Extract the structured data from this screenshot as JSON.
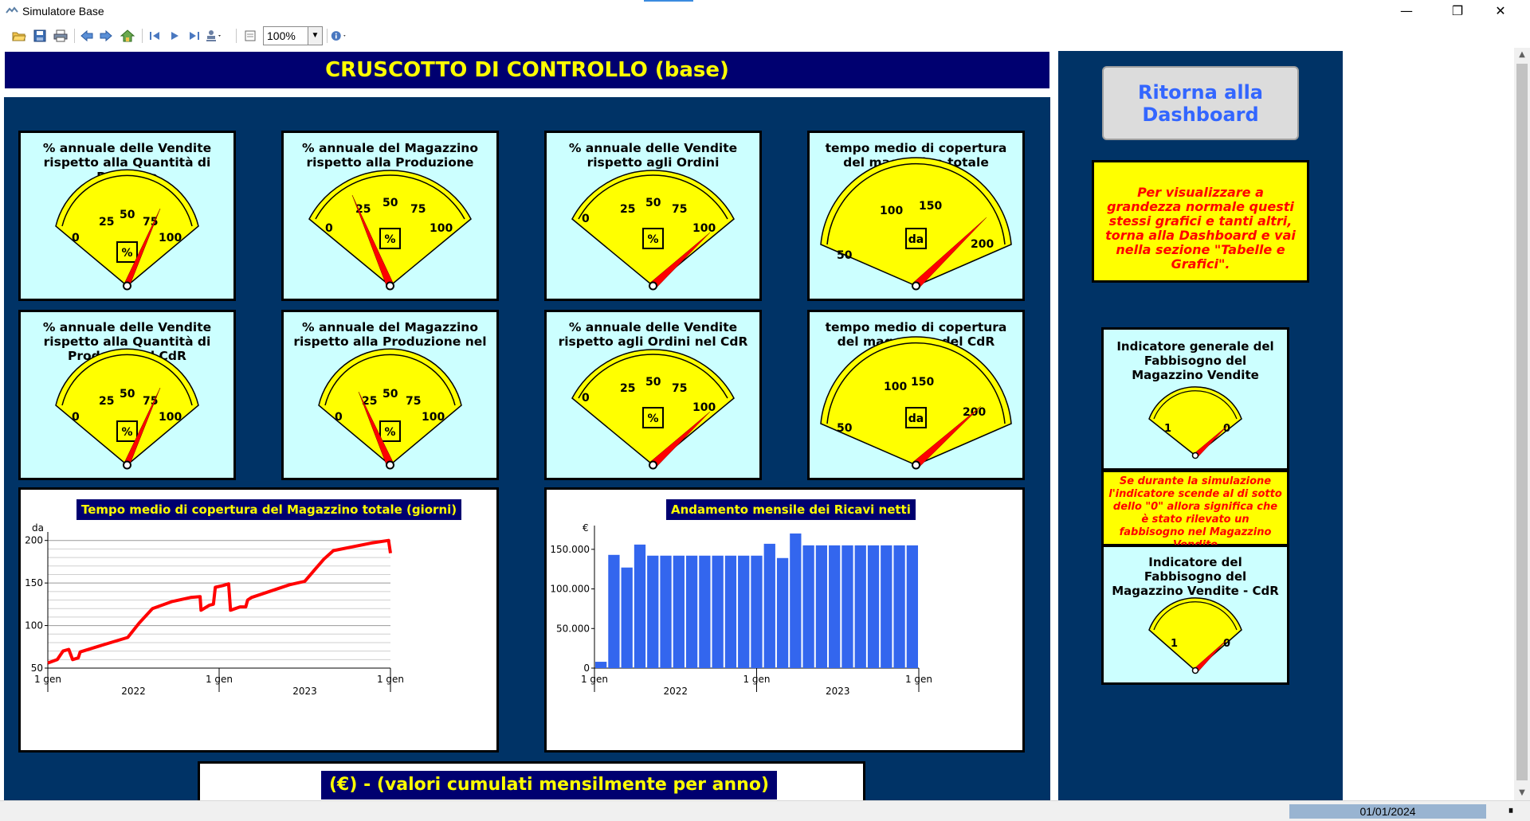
{
  "window": {
    "title": "Simulatore Base",
    "minimize_glyph": "—",
    "maximize_glyph": "❐",
    "close_glyph": "✕"
  },
  "toolbar": {
    "icons": [
      "open-folder-icon",
      "save-icon",
      "print-icon",
      "back-arrow-icon",
      "forward-arrow-icon",
      "home-icon",
      "first-page-icon",
      "play-icon",
      "last-page-icon",
      "stamp-icon",
      "page-setup-icon",
      "info-icon"
    ],
    "zoom": "100%"
  },
  "header": {
    "title": "CRUSCOTTO DI CONTROLLO (base)"
  },
  "colors": {
    "navy": "#000070",
    "panel": "#003366",
    "card": "#ccffff",
    "gauge_face": "#ffff00",
    "needle": "#ff0000",
    "bar": "#3366ee",
    "line": "#ff0000",
    "title_text": "#ffff00"
  },
  "gauges": [
    {
      "title": "% annuale delle Vendite rispetto alla Quantità di Prodotto",
      "unit": "%",
      "labels": [
        "0",
        "25",
        "50",
        "75",
        "100"
      ]
    },
    {
      "title": "%  annuale del Magazzino rispetto alla Produzione",
      "unit": "%",
      "labels": [
        "0",
        "25",
        "50",
        "75",
        "100"
      ]
    },
    {
      "title": "% annuale delle Vendite rispetto agli Ordini",
      "unit": "%",
      "labels": [
        "0",
        "25",
        "50",
        "75",
        "100"
      ]
    },
    {
      "title": "tempo medio di copertura del magazzino totale (giorni)",
      "unit": "da",
      "labels": [
        "50",
        "100",
        "150",
        "200"
      ]
    },
    {
      "title": "% annuale delle Vendite rispetto alla Quantità di Prodotto nel CdR",
      "unit": "%",
      "labels": [
        "0",
        "25",
        "50",
        "75",
        "100"
      ]
    },
    {
      "title": "%  annuale del Magazzino rispetto alla Produzione nel CdR",
      "unit": "%",
      "labels": [
        "0",
        "25",
        "50",
        "75",
        "100"
      ]
    },
    {
      "title": "% annuale delle Vendite rispetto agli Ordini nel CdR",
      "unit": "%",
      "labels": [
        "0",
        "25",
        "50",
        "75",
        "100"
      ]
    },
    {
      "title": "tempo medio di copertura del magazzino del CdR (giorni)",
      "unit": "da",
      "labels": [
        "50",
        "100",
        "150",
        "200"
      ]
    }
  ],
  "side": {
    "return_button": "Ritorna alla Dashboard",
    "note": "Per visualizzare a grandezza normale questi stessi grafici e tanti altri, torna alla Dashboard e vai nella sezione \"Tabelle e Grafici\".",
    "indicator_general_title": "Indicatore generale del Fabbisogno del Magazzino Vendite",
    "indicator_general_labels": [
      "1",
      "0"
    ],
    "fabbisogno_note": "Se durante la simulazione l'indicatore scende al di sotto dello \"0\" allora significa che è stato rilevato un fabbisogno nel Magazzino Vendite",
    "indicator_cdr_title": "Indicatore del Fabbisogno del Magazzino Vendite - CdR",
    "indicator_cdr_labels": [
      "1",
      "0"
    ]
  },
  "bottom": {
    "title": "(€) - (valori cumulati mensilmente per anno)"
  },
  "status": {
    "date": "01/01/2024",
    "pause_glyph": "⏸"
  },
  "chart_data": [
    {
      "type": "line",
      "title": "Tempo medio di copertura del Magazzino totale (giorni)",
      "ylabel": "da",
      "ylim": [
        50,
        210
      ],
      "yticks": [
        50,
        100,
        150,
        200
      ],
      "xticks": [
        "1 gen",
        "1 gen",
        "1 gen"
      ],
      "year_labels": [
        "2022",
        "2023"
      ],
      "grid": true,
      "series": [
        {
          "values": [
            [
              0,
              56
            ],
            [
              0.5,
              60
            ],
            [
              0.8,
              70
            ],
            [
              1.1,
              72
            ],
            [
              1.3,
              60
            ],
            [
              1.6,
              62
            ],
            [
              1.7,
              69
            ],
            [
              3,
              78
            ],
            [
              4.2,
              86
            ],
            [
              4.8,
              103
            ],
            [
              5.5,
              120
            ],
            [
              6.5,
              128
            ],
            [
              7.5,
              133
            ],
            [
              8,
              134
            ],
            [
              8.05,
              118
            ],
            [
              8.5,
              124
            ],
            [
              8.7,
              125
            ],
            [
              8.8,
              145
            ],
            [
              9.2,
              147
            ],
            [
              9.5,
              149
            ],
            [
              9.6,
              118
            ],
            [
              10.1,
              122
            ],
            [
              10.4,
              122
            ],
            [
              10.5,
              130
            ],
            [
              10.7,
              133
            ],
            [
              12.7,
              148
            ],
            [
              13.5,
              152
            ],
            [
              14,
              165
            ],
            [
              14.5,
              178
            ],
            [
              15,
              188
            ],
            [
              17,
              197
            ],
            [
              17.9,
              200
            ],
            [
              18,
              185
            ]
          ]
        }
      ]
    },
    {
      "type": "bar",
      "title": "Andamento mensile dei Ricavi netti",
      "ylabel": "€",
      "ylim": [
        0,
        180000
      ],
      "yticks": [
        "0",
        "50.000",
        "100.000",
        "150.000"
      ],
      "ytick_values": [
        0,
        50000,
        100000,
        150000
      ],
      "xticks": [
        "1 gen",
        "1 gen",
        "1 gen"
      ],
      "year_labels": [
        "2022",
        "2023"
      ],
      "values": [
        8000,
        143000,
        127000,
        156000,
        142000,
        142000,
        142000,
        142000,
        142000,
        142000,
        142000,
        142000,
        142000,
        157000,
        139000,
        170000,
        155000,
        155000,
        155000,
        155000,
        155000,
        155000,
        155000,
        155000,
        155000
      ]
    }
  ]
}
